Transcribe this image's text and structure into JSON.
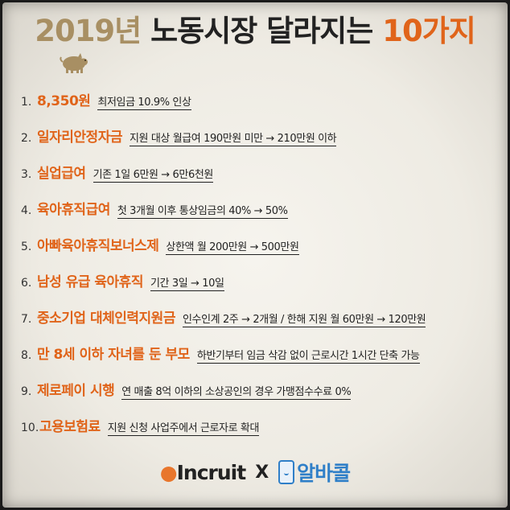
{
  "title": {
    "year": "2019년",
    "main": "노동시장 달라지는",
    "count": "10가지"
  },
  "items": [
    {
      "num": "1.",
      "title": "8,350원",
      "desc": "최저임금 10.9% 인상"
    },
    {
      "num": "2.",
      "title": "일자리안정자금",
      "desc": "지원 대상 월급여 190만원 미만 → 210만원 이하"
    },
    {
      "num": "3.",
      "title": "실업급여",
      "desc": "기존 1일 6만원 → 6만6천원"
    },
    {
      "num": "4.",
      "title": "육아휴직급여",
      "desc": "첫 3개월 이후 통상임금의 40% → 50%"
    },
    {
      "num": "5.",
      "title": "아빠육아휴직보너스제",
      "desc": "상한액 월 200만원 → 500만원"
    },
    {
      "num": "6.",
      "title": "남성 유급 육아휴직",
      "desc": "기간 3일 → 10일"
    },
    {
      "num": "7.",
      "title": "중소기업 대체인력지원금",
      "desc": "인수인계 2주 → 2개월 / 한해 지원 월 60만원 → 120만원"
    },
    {
      "num": "8.",
      "title": "만 8세 이하 자녀를 둔 부모",
      "desc": "하반기부터 임금 삭감 없이 근로시간 1시간 단축 가능"
    },
    {
      "num": "9.",
      "title": "제로페이 시행",
      "desc": "연 매출 8억 이하의 소상공인의 경우 가맹점수수료 0%"
    },
    {
      "num": "10.",
      "title": "고용보험료",
      "desc": "지원 신청 사업주에서 근로자로 확대"
    }
  ],
  "logos": {
    "incruit": "Incruit",
    "separator": "X",
    "alba": "알바콜"
  },
  "colors": {
    "accent": "#e0641a",
    "title_year": "#a88f63",
    "alba_blue": "#2f7fc8"
  }
}
